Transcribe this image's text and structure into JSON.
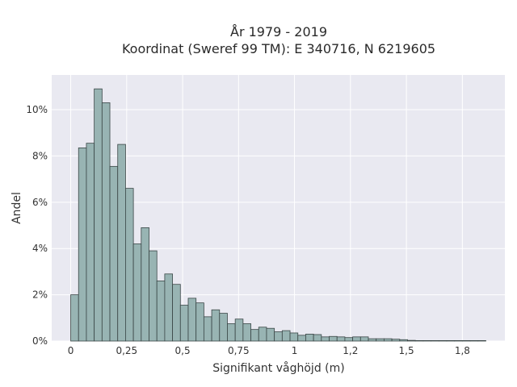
{
  "chart_data": {
    "type": "bar",
    "title_line1": "År 1979 - 2019",
    "title_line2": "Koordinat (Sweref 99 TM): E 340716, N 6219605",
    "xlabel": "Signifikant våghöjd (m)",
    "ylabel": "Andel",
    "xlim": [
      -0.085,
      1.94
    ],
    "ylim": [
      0,
      11.5
    ],
    "bin_width": 0.035,
    "bin_start": 0.0,
    "x_ticks": [
      {
        "value": 0,
        "label": "0"
      },
      {
        "value": 0.25,
        "label": "0,25"
      },
      {
        "value": 0.5,
        "label": "0,5"
      },
      {
        "value": 0.75,
        "label": "0,75"
      },
      {
        "value": 1.0,
        "label": "1"
      },
      {
        "value": 1.25,
        "label": "1,2"
      },
      {
        "value": 1.5,
        "label": "1,5"
      },
      {
        "value": 1.75,
        "label": "1,8"
      }
    ],
    "y_ticks": [
      {
        "value": 0,
        "label": "0%"
      },
      {
        "value": 2,
        "label": "2%"
      },
      {
        "value": 4,
        "label": "4%"
      },
      {
        "value": 6,
        "label": "6%"
      },
      {
        "value": 8,
        "label": "8%"
      },
      {
        "value": 10,
        "label": "10%"
      }
    ],
    "values": [
      2.0,
      8.35,
      8.55,
      10.9,
      10.3,
      7.55,
      8.5,
      6.6,
      4.2,
      4.9,
      3.9,
      2.6,
      2.9,
      2.45,
      1.55,
      1.85,
      1.65,
      1.05,
      1.35,
      1.2,
      0.75,
      0.95,
      0.75,
      0.5,
      0.6,
      0.55,
      0.4,
      0.45,
      0.35,
      0.25,
      0.3,
      0.28,
      0.18,
      0.2,
      0.18,
      0.15,
      0.18,
      0.18,
      0.1,
      0.1,
      0.1,
      0.08,
      0.06,
      0.03,
      0.02,
      0.02,
      0.02,
      0.02,
      0.02,
      0.02,
      0.02,
      0.02,
      0.02
    ],
    "colors": {
      "bar": "#98b4b3",
      "edge": "#3a4646",
      "background": "#e9e9f1",
      "grid": "#ffffff"
    }
  }
}
